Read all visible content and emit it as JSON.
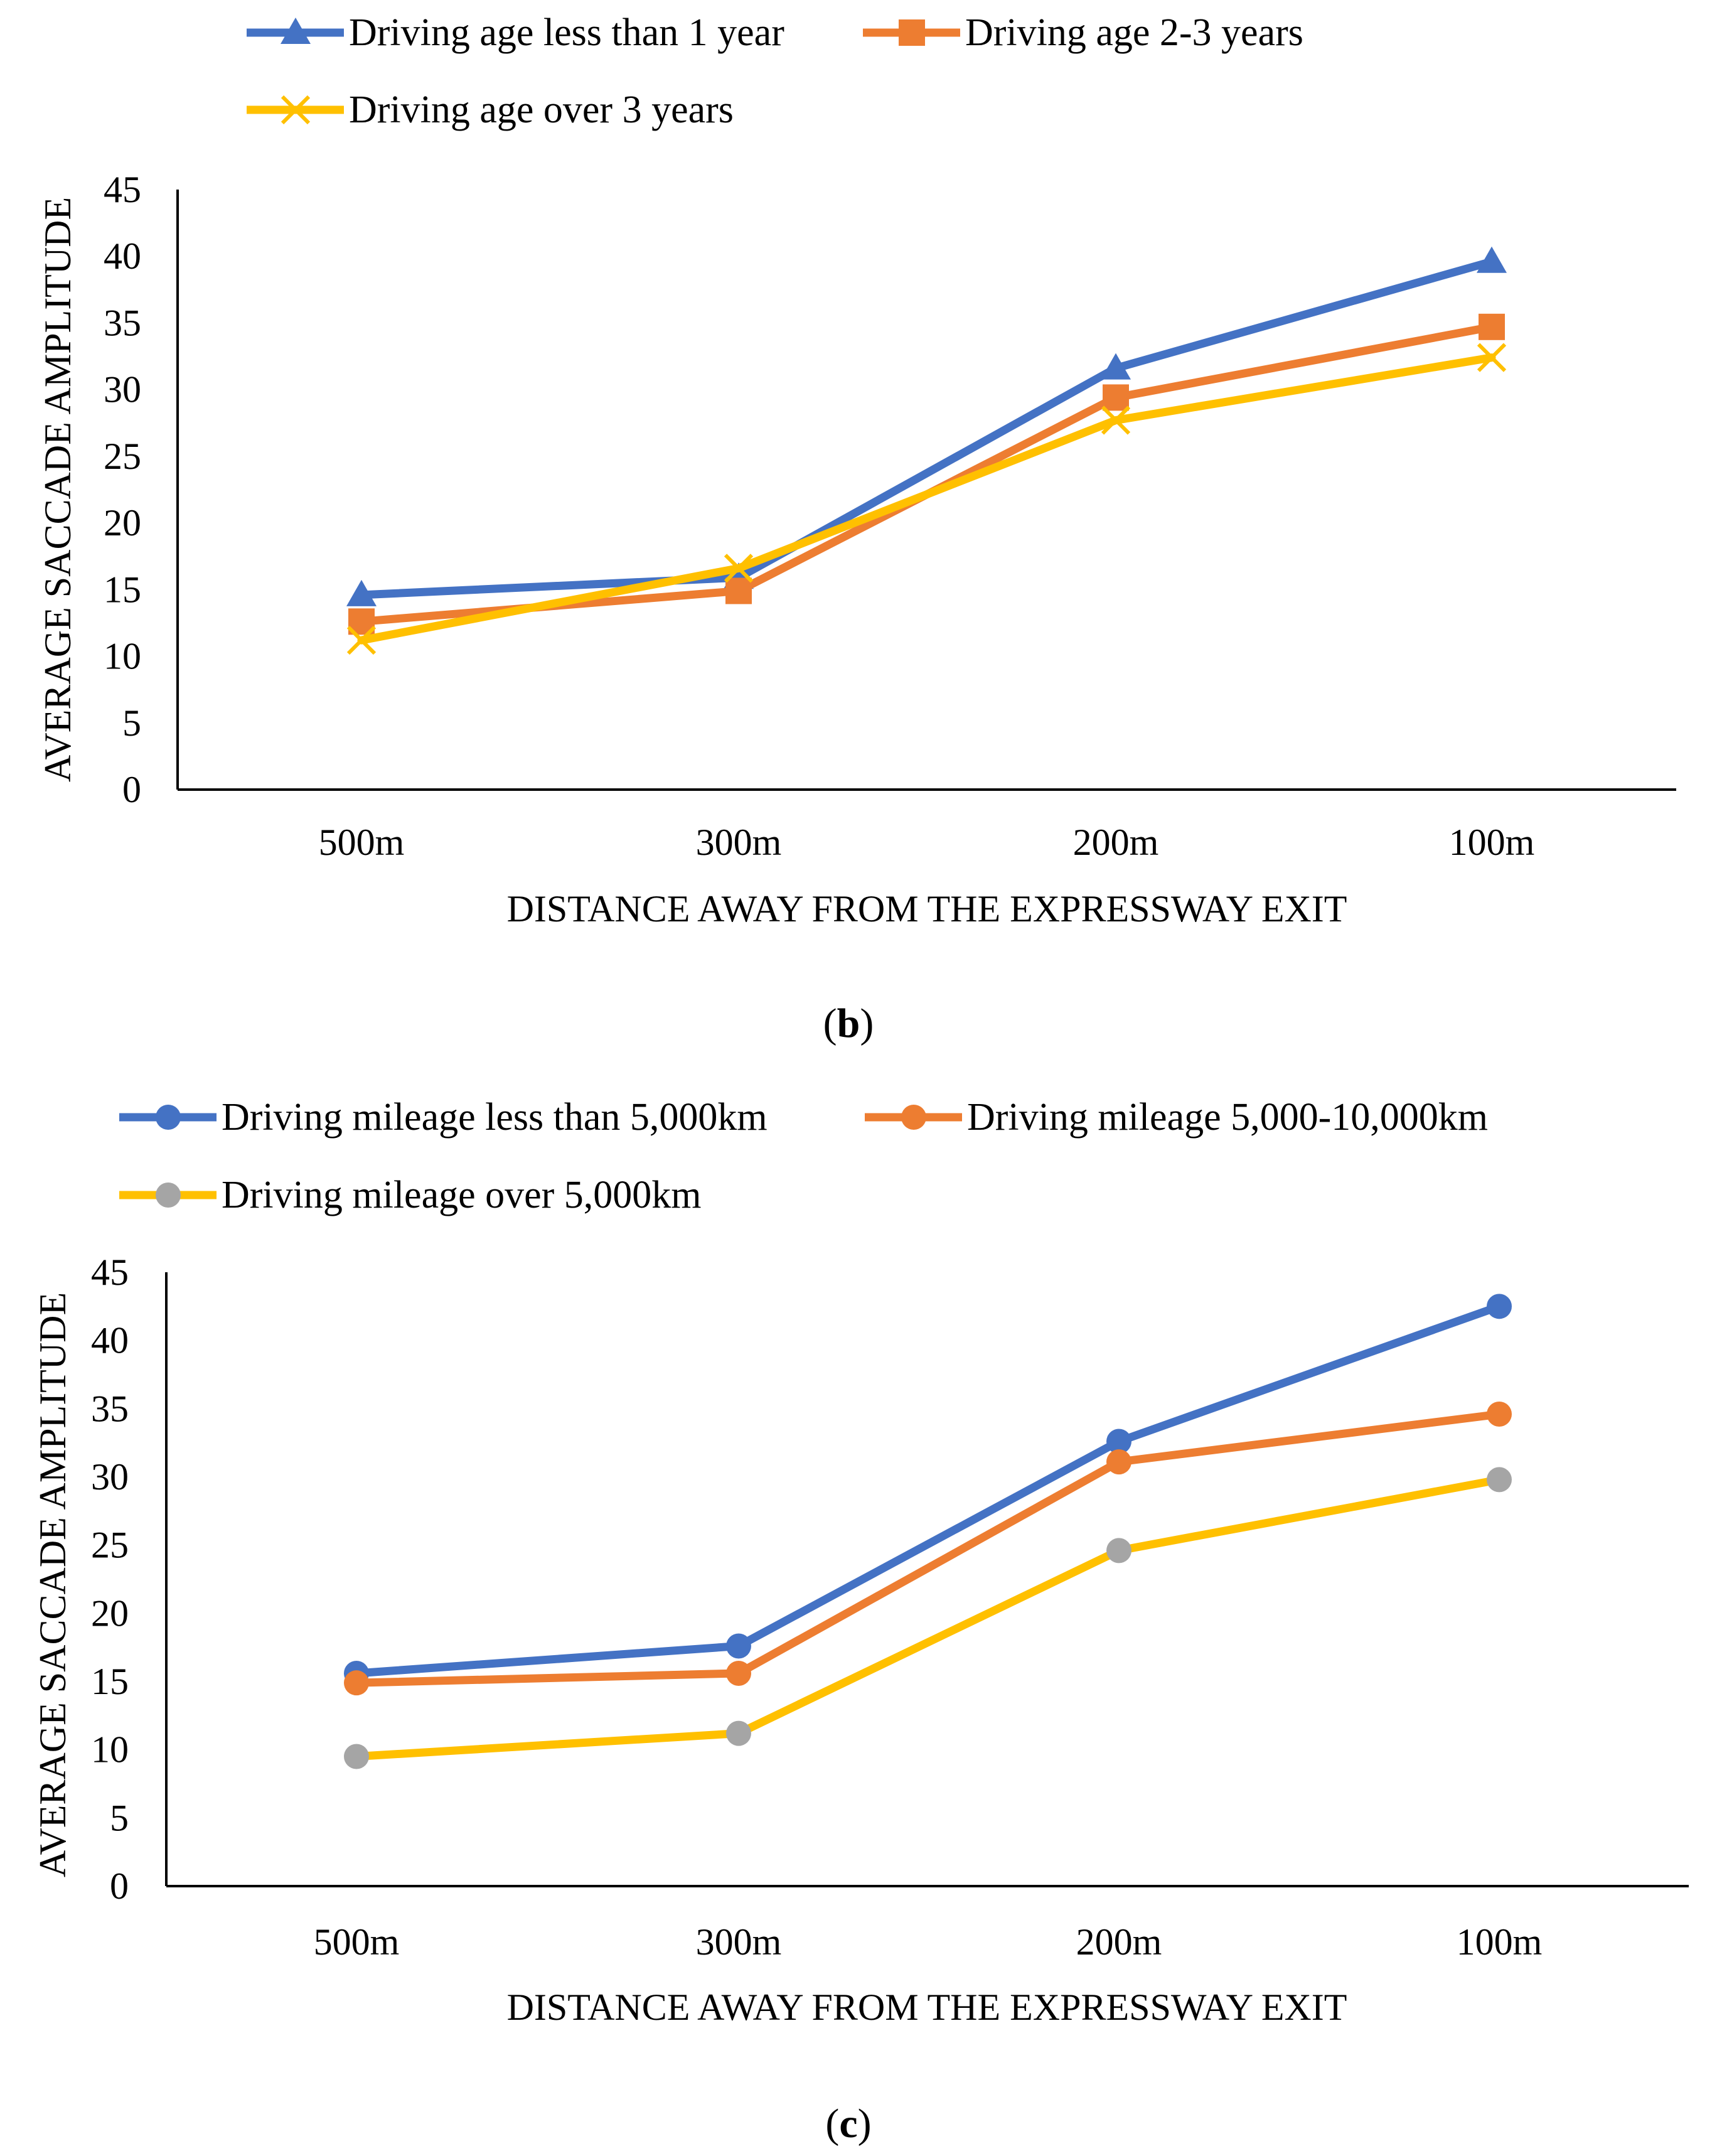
{
  "chart_data": [
    {
      "type": "line",
      "panel": "b",
      "categories": [
        "500m",
        "300m",
        "200m",
        "100m"
      ],
      "xlabel": "DISTANCE AWAY FROM THE EXPRESSWAY EXIT",
      "ylabel": "AVERAGE SACCADE AMPLITUDE",
      "ylim": [
        0,
        45
      ],
      "yticks": [
        0,
        5,
        10,
        15,
        20,
        25,
        30,
        35,
        40,
        45
      ],
      "grid": false,
      "legend_position": "top",
      "series": [
        {
          "name": "Driving age less than 1 year",
          "color": "#4472C4",
          "marker": "triangle",
          "values": [
            14.6,
            15.9,
            31.6,
            39.6
          ]
        },
        {
          "name": "Driving age 2-3 years",
          "color": "#ED7D31",
          "marker": "square",
          "values": [
            12.6,
            14.9,
            29.4,
            34.7
          ]
        },
        {
          "name": "Driving age over 3 years",
          "color": "#FFC000",
          "marker": "x",
          "values": [
            11.2,
            16.6,
            27.7,
            32.4
          ]
        }
      ],
      "caption_open": "(",
      "caption_letter": "b",
      "caption_close": ")"
    },
    {
      "type": "line",
      "panel": "c",
      "categories": [
        "500m",
        "300m",
        "200m",
        "100m"
      ],
      "xlabel": "DISTANCE AWAY FROM THE EXPRESSWAY EXIT",
      "ylabel": "AVERAGE SACCADE AMPLITUDE",
      "ylim": [
        0,
        45
      ],
      "yticks": [
        0,
        5,
        10,
        15,
        20,
        25,
        30,
        35,
        40,
        45
      ],
      "grid": false,
      "legend_position": "top",
      "series": [
        {
          "name": "Driving mileage less than 5,000km",
          "color": "#4472C4",
          "marker": "circle",
          "marker_color": "#4472C4",
          "values": [
            15.6,
            17.6,
            32.6,
            42.5
          ]
        },
        {
          "name": "Driving mileage 5,000-10,000km",
          "color": "#ED7D31",
          "marker": "circle",
          "marker_color": "#ED7D31",
          "values": [
            14.9,
            15.6,
            31.1,
            34.6
          ]
        },
        {
          "name": "Driving mileage over 5,000km",
          "color": "#FFC000",
          "marker": "circle",
          "marker_color": "#A5A5A5",
          "values": [
            9.5,
            11.2,
            24.6,
            29.8
          ]
        }
      ],
      "caption_open": "(",
      "caption_letter": "c",
      "caption_close": ")"
    }
  ]
}
